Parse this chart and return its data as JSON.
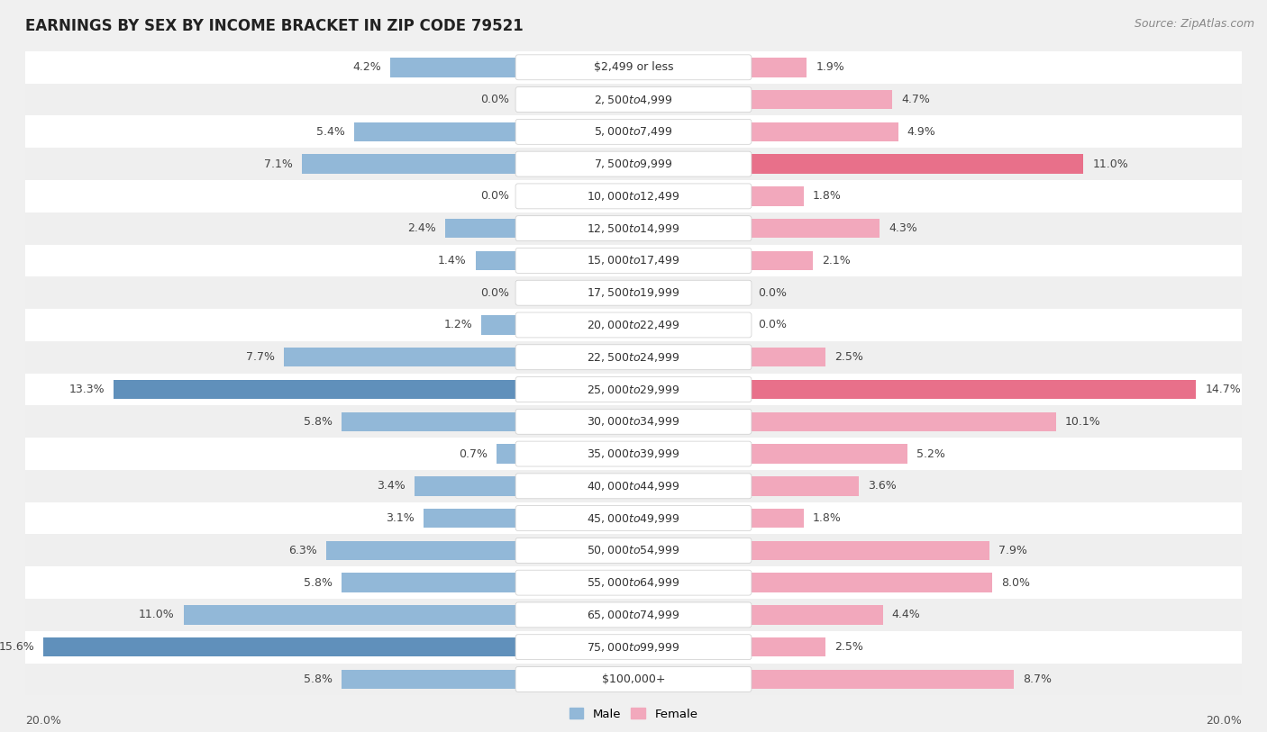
{
  "title": "EARNINGS BY SEX BY INCOME BRACKET IN ZIP CODE 79521",
  "source": "Source: ZipAtlas.com",
  "categories": [
    "$2,499 or less",
    "$2,500 to $4,999",
    "$5,000 to $7,499",
    "$7,500 to $9,999",
    "$10,000 to $12,499",
    "$12,500 to $14,999",
    "$15,000 to $17,499",
    "$17,500 to $19,999",
    "$20,000 to $22,499",
    "$22,500 to $24,999",
    "$25,000 to $29,999",
    "$30,000 to $34,999",
    "$35,000 to $39,999",
    "$40,000 to $44,999",
    "$45,000 to $49,999",
    "$50,000 to $54,999",
    "$55,000 to $64,999",
    "$65,000 to $74,999",
    "$75,000 to $99,999",
    "$100,000+"
  ],
  "male": [
    4.2,
    0.0,
    5.4,
    7.1,
    0.0,
    2.4,
    1.4,
    0.0,
    1.2,
    7.7,
    13.3,
    5.8,
    0.7,
    3.4,
    3.1,
    6.3,
    5.8,
    11.0,
    15.6,
    5.8
  ],
  "female": [
    1.9,
    4.7,
    4.9,
    11.0,
    1.8,
    4.3,
    2.1,
    0.0,
    0.0,
    2.5,
    14.7,
    10.1,
    5.2,
    3.6,
    1.8,
    7.9,
    8.0,
    4.4,
    2.5,
    8.7
  ],
  "male_color": "#92b8d8",
  "female_color": "#f2a8bc",
  "male_highlight_color": "#6090bb",
  "female_highlight_color": "#e8708a",
  "highlight_male": [
    10,
    18
  ],
  "highlight_female": [
    3,
    10
  ],
  "row_color_even": "#ffffff",
  "row_color_odd": "#efefef",
  "background_color": "#f0f0f0",
  "label_box_color": "#ffffff",
  "xlim": 20.0,
  "title_fontsize": 12,
  "source_fontsize": 9,
  "label_fontsize": 9,
  "pct_fontsize": 9,
  "bar_height": 0.6
}
